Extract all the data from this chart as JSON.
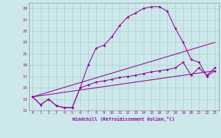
{
  "xlabel": "Windchill (Refroidissement éolien,°C)",
  "xlim": [
    -0.5,
    23.5
  ],
  "ylim": [
    11,
    30
  ],
  "xticks": [
    0,
    1,
    2,
    3,
    4,
    5,
    6,
    7,
    8,
    9,
    10,
    11,
    12,
    13,
    14,
    15,
    16,
    17,
    18,
    19,
    20,
    21,
    22,
    23
  ],
  "yticks": [
    11,
    13,
    15,
    17,
    19,
    21,
    23,
    25,
    27,
    29
  ],
  "bg_color": "#cce8ea",
  "line_color": "#990099",
  "grid_color": "#aacccc",
  "line1_x": [
    0,
    1,
    2,
    3,
    4,
    5,
    6,
    7,
    8,
    9,
    10,
    11,
    12,
    13,
    14,
    15,
    16,
    17,
    18,
    19,
    20,
    21,
    22,
    23
  ],
  "line1_y": [
    13.4,
    12.0,
    13.0,
    11.8,
    11.5,
    11.5,
    15.0,
    19.0,
    22.0,
    22.5,
    24.0,
    26.0,
    27.5,
    28.2,
    29.0,
    29.3,
    29.3,
    28.5,
    25.5,
    23.0,
    20.0,
    19.5,
    17.0,
    18.0
  ],
  "line2_x": [
    0,
    1,
    2,
    3,
    4,
    5,
    6,
    7,
    8,
    9,
    10,
    11,
    12,
    13,
    14,
    15,
    16,
    17,
    18,
    19,
    20,
    21,
    22,
    23
  ],
  "line2_y": [
    13.4,
    12.0,
    13.0,
    11.8,
    11.5,
    11.5,
    15.0,
    15.5,
    16.0,
    16.2,
    16.5,
    16.8,
    17.0,
    17.2,
    17.5,
    17.8,
    18.0,
    18.2,
    18.5,
    19.5,
    17.2,
    18.5,
    17.2,
    18.5
  ],
  "line3_x": [
    0,
    23
  ],
  "line3_y": [
    13.4,
    23.0
  ],
  "line4_x": [
    0,
    23
  ],
  "line4_y": [
    13.4,
    18.0
  ]
}
